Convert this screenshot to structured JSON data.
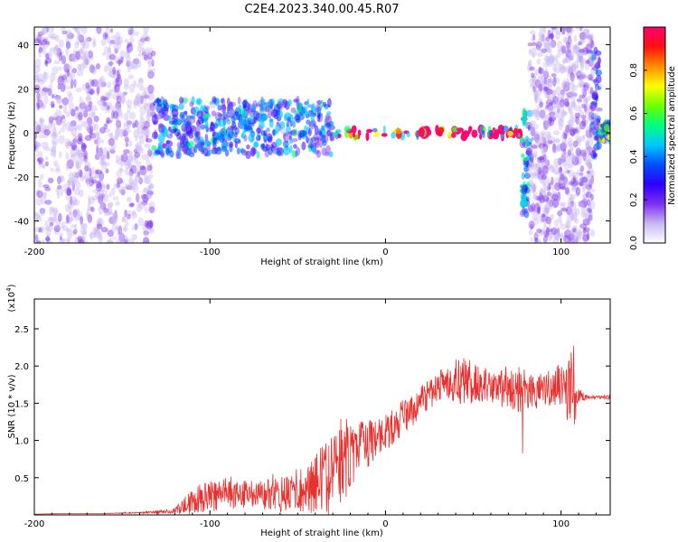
{
  "title": "C2E4.2023.340.00.45.R07",
  "colors": {
    "line": "#e8312f",
    "frame": "#000000"
  },
  "colorbar": {
    "label": "Normalized spectral amplitude",
    "ticks": [
      "0.0",
      "0.2",
      "0.4",
      "0.6",
      "0.8"
    ],
    "tick_values": [
      0.0,
      0.2,
      0.4,
      0.6,
      0.8
    ],
    "stops": [
      "#ffffff",
      "#c9b6f2",
      "#7c2ff0",
      "#2b00ff",
      "#0050ff",
      "#00c8ff",
      "#00ff80",
      "#70ff00",
      "#ffff00",
      "#ff8c00",
      "#ff1010",
      "#ff0070"
    ]
  },
  "chart_data": [
    {
      "type": "heatmap",
      "title": "C2E4.2023.340.00.45.R07",
      "xlabel": "Height of straight line (km)",
      "ylabel": "Frequency (Hz)",
      "xlim": [
        -200,
        128
      ],
      "ylim": [
        -50,
        48
      ],
      "x_ticks": [
        -200,
        -100,
        0,
        100
      ],
      "x_tick_labels": [
        "-200",
        "-100",
        "0",
        "100"
      ],
      "y_ticks": [
        -40,
        -20,
        0,
        20,
        40
      ],
      "y_tick_labels": [
        "-40",
        "-20",
        "0",
        "20",
        "40"
      ],
      "colorbar_label": "Normalized spectral amplitude",
      "colorbar_range": [
        0,
        1
      ],
      "regions": [
        {
          "x": [
            -200,
            -132
          ],
          "freq": [
            -50,
            48
          ],
          "amplitude": 0.12
        },
        {
          "x": [
            -132,
            -30
          ],
          "freq": [
            -10,
            15
          ],
          "amplitude": 0.35
        },
        {
          "x": [
            -30,
            78
          ],
          "freq": [
            -2,
            2
          ],
          "amplitude": 0.95
        },
        {
          "x": [
            78,
            82
          ],
          "freq": [
            -38,
            10
          ],
          "amplitude": 0.4
        },
        {
          "x": [
            82,
            118
          ],
          "freq": [
            -50,
            48
          ],
          "amplitude": 0.12
        },
        {
          "x": [
            118,
            122
          ],
          "freq": [
            -12,
            38
          ],
          "amplitude": 0.3
        },
        {
          "x": [
            122,
            128
          ],
          "freq": [
            -4,
            4
          ],
          "amplitude": 0.5
        }
      ]
    },
    {
      "type": "line",
      "xlabel": "Height of straight line (km)",
      "ylabel": "SNR (10 * v/v)",
      "yscale_label": "(x10",
      "yscale_exp": "4",
      "yscale_close": ")",
      "xlim": [
        -200,
        128
      ],
      "ylim": [
        0,
        2.9
      ],
      "x_ticks": [
        -200,
        -100,
        0,
        100
      ],
      "x_tick_labels": [
        "-200",
        "-100",
        "0",
        "100"
      ],
      "y_ticks": [
        0.5,
        1.0,
        1.5,
        2.0,
        2.5
      ],
      "y_tick_labels": [
        "0.5",
        "1.0",
        "1.5",
        "2.0",
        "2.5"
      ],
      "series": [
        {
          "x": [
            -200,
            -180,
            -160,
            -140,
            -130,
            -120,
            -115,
            -110,
            -105,
            -100,
            -95,
            -90,
            -85,
            -80,
            -75,
            -70,
            -65,
            -60,
            -55,
            -50,
            -45,
            -40,
            -35,
            -30,
            -25,
            -20,
            -15,
            -10,
            -5,
            0,
            5,
            10,
            15,
            20,
            25,
            30,
            35,
            40,
            45,
            50,
            55,
            60,
            65,
            70,
            75,
            80,
            85,
            90,
            95,
            100,
            105,
            108,
            110,
            115,
            120,
            128
          ],
          "y": [
            0.01,
            0.02,
            0.02,
            0.03,
            0.04,
            0.06,
            0.1,
            0.18,
            0.22,
            0.25,
            0.27,
            0.28,
            0.28,
            0.26,
            0.26,
            0.27,
            0.29,
            0.28,
            0.3,
            0.33,
            0.38,
            0.42,
            0.48,
            0.55,
            0.62,
            0.75,
            0.85,
            0.95,
            1.05,
            1.1,
            1.2,
            1.3,
            1.42,
            1.52,
            1.62,
            1.72,
            1.78,
            1.8,
            1.82,
            1.8,
            1.75,
            1.7,
            1.7,
            1.68,
            1.72,
            1.7,
            1.65,
            1.68,
            1.7,
            1.75,
            1.7,
            1.72,
            1.6,
            1.58,
            1.58,
            1.58
          ],
          "noise": [
            0.0,
            0.0,
            0.0,
            0.01,
            0.02,
            0.04,
            0.12,
            0.18,
            0.2,
            0.22,
            0.22,
            0.22,
            0.2,
            0.2,
            0.2,
            0.2,
            0.22,
            0.24,
            0.28,
            0.3,
            0.35,
            0.42,
            0.5,
            0.6,
            0.55,
            0.45,
            0.4,
            0.32,
            0.25,
            0.25,
            0.25,
            0.25,
            0.2,
            0.2,
            0.2,
            0.2,
            0.25,
            0.3,
            0.35,
            0.3,
            0.25,
            0.25,
            0.25,
            0.25,
            0.35,
            0.3,
            0.25,
            0.25,
            0.25,
            0.3,
            0.5,
            0.6,
            0.1,
            0.03,
            0.03,
            0.03
          ]
        }
      ]
    }
  ]
}
